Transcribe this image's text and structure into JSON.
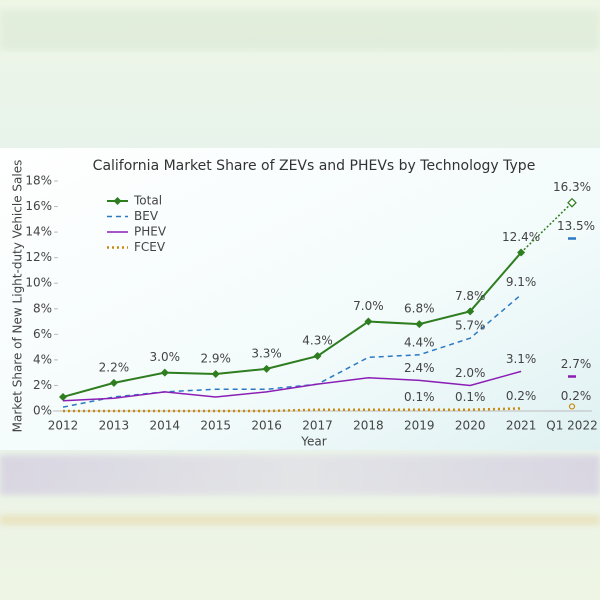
{
  "chart_data": {
    "type": "line",
    "title": "California Market Share of ZEVs and PHEVs by Technology Type",
    "x_label": "Year",
    "y_label": "Market Share of New Light-duty Vehicle Sales",
    "categories": [
      "2012",
      "2013",
      "2014",
      "2015",
      "2016",
      "2017",
      "2018",
      "2019",
      "2020",
      "2021",
      "Q1 2022"
    ],
    "ylim": [
      0,
      18
    ],
    "yticks": [
      {
        "value": 0,
        "label": "0%"
      },
      {
        "value": 2,
        "label": "2%"
      },
      {
        "value": 4,
        "label": "4%"
      },
      {
        "value": 6,
        "label": "6%"
      },
      {
        "value": 8,
        "label": "8%"
      },
      {
        "value": 10,
        "label": "10%"
      },
      {
        "value": 12,
        "label": "12%"
      },
      {
        "value": 14,
        "label": "14%"
      },
      {
        "value": 16,
        "label": "16%"
      },
      {
        "value": 18,
        "label": "18%"
      }
    ],
    "grid": false,
    "legend": "top-left",
    "series": [
      {
        "name": "Total",
        "color": "#2e7d1f",
        "values": [
          1.1,
          2.2,
          3.0,
          2.9,
          3.3,
          4.3,
          7.0,
          6.8,
          7.8,
          12.4,
          16.3
        ],
        "value_labels": [
          null,
          "2.2%",
          "3.0%",
          "2.9%",
          "3.3%",
          "4.3%",
          "7.0%",
          "6.8%",
          "7.8%",
          "12.4%",
          "16.3%"
        ]
      },
      {
        "name": "BEV",
        "color": "#2b78c5",
        "values": [
          0.3,
          1.1,
          1.5,
          1.7,
          1.7,
          2.1,
          4.2,
          4.4,
          5.7,
          9.1,
          13.5
        ],
        "value_labels": [
          null,
          null,
          null,
          null,
          null,
          null,
          null,
          "4.4%",
          "5.7%",
          "9.1%",
          "13.5%"
        ]
      },
      {
        "name": "PHEV",
        "color": "#8b1fb5",
        "values": [
          0.8,
          1.0,
          1.5,
          1.1,
          1.5,
          2.1,
          2.6,
          2.4,
          2.0,
          3.1,
          2.7
        ],
        "value_labels": [
          null,
          null,
          null,
          null,
          null,
          null,
          null,
          "2.4%",
          "2.0%",
          "3.1%",
          "2.7%"
        ]
      },
      {
        "name": "FCEV",
        "color": "#c98a0a",
        "values": [
          0,
          0,
          0,
          0,
          0,
          0.1,
          0.1,
          0.1,
          0.1,
          0.2,
          0.2
        ],
        "value_labels": [
          null,
          null,
          null,
          null,
          null,
          null,
          null,
          "0.1%",
          "0.1%",
          "0.2%",
          "0.2%"
        ]
      }
    ]
  }
}
